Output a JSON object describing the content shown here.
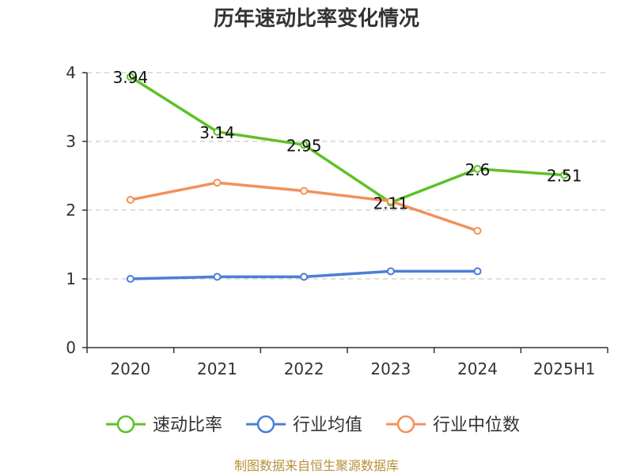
{
  "chart_data": {
    "type": "line",
    "title": "历年速动比率变化情况",
    "categories": [
      "2020",
      "2021",
      "2022",
      "2023",
      "2024",
      "2025H1"
    ],
    "ylim": [
      0,
      4
    ],
    "yticks": [
      "0",
      "1",
      "2",
      "3",
      "4"
    ],
    "grid": true,
    "legend_position": "bottom",
    "series": [
      {
        "name": "速动比率",
        "color": "#5ec127",
        "values": [
          3.94,
          3.14,
          2.95,
          2.11,
          2.6,
          2.51
        ],
        "labels": [
          "3.94",
          "3.14",
          "2.95",
          "2.11",
          "2.6",
          "2.51"
        ]
      },
      {
        "name": "行业均值",
        "color": "#4a7fd6",
        "values": [
          1.0,
          1.03,
          1.03,
          1.11,
          1.11,
          null
        ]
      },
      {
        "name": "行业中位数",
        "color": "#f4905a",
        "values": [
          2.15,
          2.4,
          2.28,
          2.13,
          1.7,
          null
        ]
      }
    ],
    "source": "制图数据来自恒生聚源数据库"
  }
}
